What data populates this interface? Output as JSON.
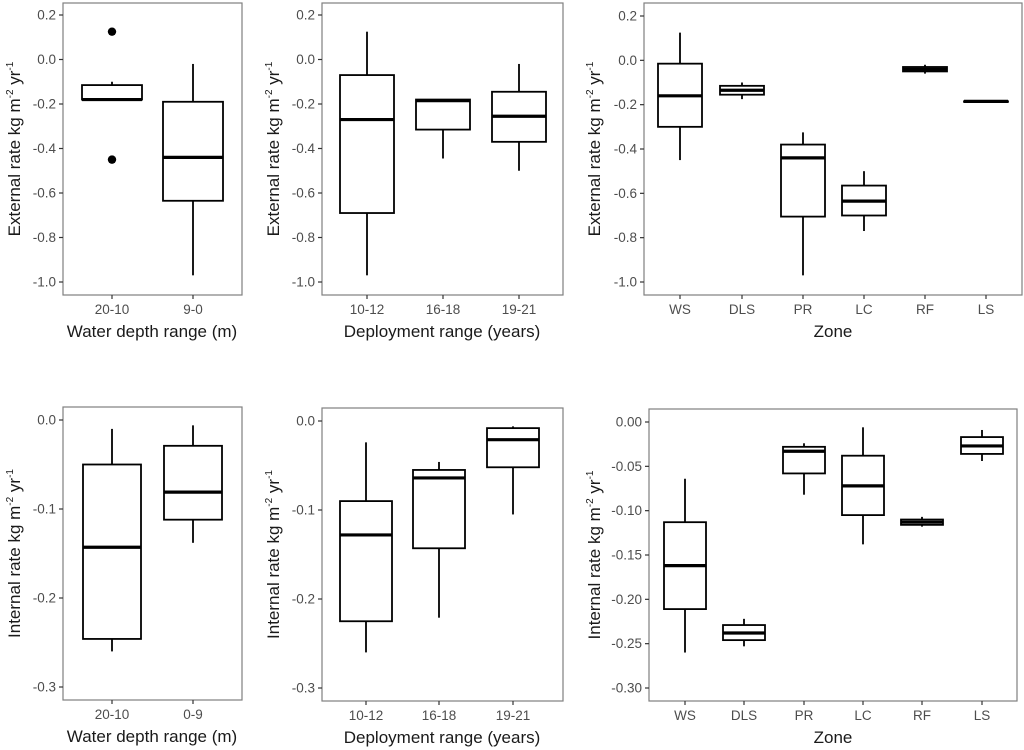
{
  "chart_data": [
    {
      "type": "box",
      "id": "external-depth",
      "xlabel": "Water depth range (m)",
      "ylabel": "External rate kg m-2 yr-1",
      "ylabel_parts": {
        "base": "External rate kg m",
        "sup1": "-2",
        "mid": " yr",
        "sup2": "-1"
      },
      "ylim": [
        -1.05,
        0.25
      ],
      "yticks": [
        0.2,
        0.0,
        -0.2,
        -0.4,
        -0.6,
        -0.8,
        -1.0
      ],
      "ytick_labels": [
        "0.2",
        "0.0",
        "-0.2",
        "-0.4",
        "-0.6",
        "-0.8",
        "-1.0"
      ],
      "categories": [
        "20-10",
        "9-0"
      ],
      "boxes": [
        {
          "category": "20-10",
          "whisker_low": -0.18,
          "q1": -0.18,
          "median": -0.18,
          "q3": -0.115,
          "whisker_high": -0.1,
          "outliers": [
            0.125,
            -0.45
          ]
        },
        {
          "category": "9-0",
          "whisker_low": -0.97,
          "q1": -0.635,
          "median": -0.44,
          "q3": -0.19,
          "whisker_high": -0.02,
          "outliers": []
        }
      ]
    },
    {
      "type": "box",
      "id": "external-deployment",
      "xlabel": "Deployment range (years)",
      "ylabel": "External rate kg m-2 yr-1",
      "ylabel_parts": {
        "base": "External rate kg m",
        "sup1": "-2",
        "mid": " yr",
        "sup2": "-1"
      },
      "ylim": [
        -1.05,
        0.25
      ],
      "yticks": [
        0.2,
        0.0,
        -0.2,
        -0.4,
        -0.6,
        -0.8,
        -1.0
      ],
      "ytick_labels": [
        "0.2",
        "0.0",
        "-0.2",
        "-0.4",
        "-0.6",
        "-0.8",
        "-1.0"
      ],
      "categories": [
        "10-12",
        "16-18",
        "19-21"
      ],
      "boxes": [
        {
          "category": "10-12",
          "whisker_low": -0.97,
          "q1": -0.69,
          "median": -0.27,
          "q3": -0.07,
          "whisker_high": 0.125,
          "outliers": []
        },
        {
          "category": "16-18",
          "whisker_low": -0.445,
          "q1": -0.315,
          "median": -0.185,
          "q3": -0.18,
          "whisker_high": -0.18,
          "outliers": []
        },
        {
          "category": "19-21",
          "whisker_low": -0.5,
          "q1": -0.37,
          "median": -0.255,
          "q3": -0.145,
          "whisker_high": -0.02,
          "outliers": []
        }
      ]
    },
    {
      "type": "box",
      "id": "external-zone",
      "xlabel": "Zone",
      "ylabel": "External rate kg m-2 yr-1",
      "ylabel_parts": {
        "base": "External rate kg m",
        "sup1": "-2",
        "mid": " yr",
        "sup2": "-1"
      },
      "ylim": [
        -1.05,
        0.25
      ],
      "yticks": [
        0.2,
        0.0,
        -0.2,
        -0.4,
        -0.6,
        -0.8,
        -1.0
      ],
      "ytick_labels": [
        "0.2",
        "0.0",
        "-0.2",
        "-0.4",
        "-0.6",
        "-0.8",
        "-1.0"
      ],
      "categories": [
        "WS",
        "DLS",
        "PR",
        "LC",
        "RF",
        "LS"
      ],
      "boxes": [
        {
          "category": "WS",
          "whisker_low": -0.45,
          "q1": -0.3,
          "median": -0.16,
          "q3": -0.015,
          "whisker_high": 0.125,
          "outliers": []
        },
        {
          "category": "DLS",
          "whisker_low": -0.175,
          "q1": -0.155,
          "median": -0.135,
          "q3": -0.115,
          "whisker_high": -0.1,
          "outliers": []
        },
        {
          "category": "PR",
          "whisker_low": -0.97,
          "q1": -0.705,
          "median": -0.44,
          "q3": -0.38,
          "whisker_high": -0.325,
          "outliers": []
        },
        {
          "category": "LC",
          "whisker_low": -0.77,
          "q1": -0.7,
          "median": -0.635,
          "q3": -0.565,
          "whisker_high": -0.5,
          "outliers": []
        },
        {
          "category": "RF",
          "whisker_low": -0.06,
          "q1": -0.05,
          "median": -0.04,
          "q3": -0.03,
          "whisker_high": -0.02,
          "outliers": []
        },
        {
          "category": "LS",
          "whisker_low": -0.185,
          "q1": -0.185,
          "median": -0.185,
          "q3": -0.185,
          "whisker_high": -0.185,
          "outliers": []
        }
      ]
    },
    {
      "type": "box",
      "id": "internal-depth",
      "xlabel": "Water depth range (m)",
      "ylabel": "Internal rate kg m-2 yr-1",
      "ylabel_parts": {
        "base": "Internal rate kg m",
        "sup1": "-2",
        "mid": " yr",
        "sup2": "-1"
      },
      "ylim": [
        -0.315,
        0.015
      ],
      "yticks": [
        0.0,
        -0.1,
        -0.2,
        -0.3
      ],
      "ytick_labels": [
        "0.0",
        "-0.1",
        "-0.2",
        "-0.3"
      ],
      "categories": [
        "20-10",
        "0-9"
      ],
      "boxes": [
        {
          "category": "20-10",
          "whisker_low": -0.26,
          "q1": -0.246,
          "median": -0.143,
          "q3": -0.05,
          "whisker_high": -0.01,
          "outliers": []
        },
        {
          "category": "0-9",
          "whisker_low": -0.138,
          "q1": -0.112,
          "median": -0.081,
          "q3": -0.029,
          "whisker_high": -0.006,
          "outliers": []
        }
      ]
    },
    {
      "type": "box",
      "id": "internal-deployment",
      "xlabel": "Deployment range (years)",
      "ylabel": "Internal rate kg m-2 yr-1",
      "ylabel_parts": {
        "base": "Internal rate kg m",
        "sup1": "-2",
        "mid": " yr",
        "sup2": "-1"
      },
      "ylim": [
        -0.315,
        0.015
      ],
      "yticks": [
        0.0,
        -0.1,
        -0.2,
        -0.3
      ],
      "ytick_labels": [
        "0.0",
        "-0.1",
        "-0.2",
        "-0.3"
      ],
      "categories": [
        "10-12",
        "16-18",
        "19-21"
      ],
      "boxes": [
        {
          "category": "10-12",
          "whisker_low": -0.26,
          "q1": -0.225,
          "median": -0.128,
          "q3": -0.09,
          "whisker_high": -0.024,
          "outliers": []
        },
        {
          "category": "16-18",
          "whisker_low": -0.221,
          "q1": -0.143,
          "median": -0.064,
          "q3": -0.055,
          "whisker_high": -0.046,
          "outliers": []
        },
        {
          "category": "19-21",
          "whisker_low": -0.105,
          "q1": -0.052,
          "median": -0.021,
          "q3": -0.008,
          "whisker_high": -0.006,
          "outliers": []
        }
      ]
    },
    {
      "type": "box",
      "id": "internal-zone",
      "xlabel": "Zone",
      "ylabel": "Internal rate kg m-2 yr-1",
      "ylabel_parts": {
        "base": "Internal rate kg m",
        "sup1": "-2",
        "mid": " yr",
        "sup2": "-1"
      },
      "ylim": [
        -0.315,
        0.015
      ],
      "yticks": [
        0.0,
        -0.05,
        -0.1,
        -0.15,
        -0.2,
        -0.25,
        -0.3
      ],
      "ytick_labels": [
        "0.00",
        "-0.05",
        "-0.10",
        "-0.15",
        "-0.20",
        "-0.25",
        "-0.30"
      ],
      "categories": [
        "WS",
        "DLS",
        "PR",
        "LC",
        "RF",
        "LS"
      ],
      "boxes": [
        {
          "category": "WS",
          "whisker_low": -0.26,
          "q1": -0.211,
          "median": -0.162,
          "q3": -0.113,
          "whisker_high": -0.064,
          "outliers": []
        },
        {
          "category": "DLS",
          "whisker_low": -0.253,
          "q1": -0.246,
          "median": -0.238,
          "q3": -0.229,
          "whisker_high": -0.222,
          "outliers": []
        },
        {
          "category": "PR",
          "whisker_low": -0.082,
          "q1": -0.058,
          "median": -0.033,
          "q3": -0.028,
          "whisker_high": -0.024,
          "outliers": []
        },
        {
          "category": "LC",
          "whisker_low": -0.138,
          "q1": -0.105,
          "median": -0.072,
          "q3": -0.038,
          "whisker_high": -0.006,
          "outliers": []
        },
        {
          "category": "RF",
          "whisker_low": -0.118,
          "q1": -0.116,
          "median": -0.113,
          "q3": -0.11,
          "whisker_high": -0.107,
          "outliers": []
        },
        {
          "category": "LS",
          "whisker_low": -0.044,
          "q1": -0.036,
          "median": -0.027,
          "q3": -0.017,
          "whisker_high": -0.009,
          "outliers": []
        }
      ]
    }
  ]
}
